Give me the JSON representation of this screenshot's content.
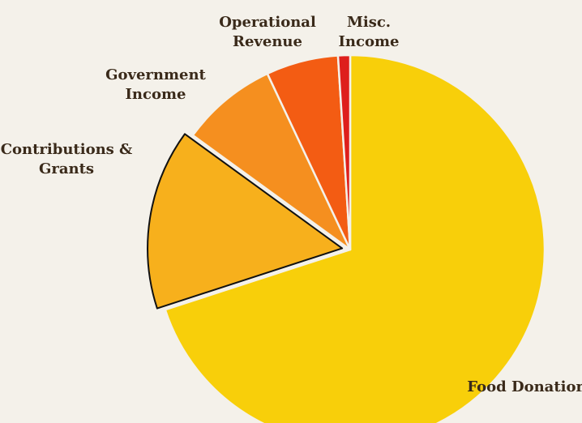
{
  "chart_data": {
    "type": "pie",
    "categories": [
      "Food Donations",
      "Contributions & Grants",
      "Government Income",
      "Operational Revenue",
      "Misc. Income"
    ],
    "values": [
      70,
      15,
      8,
      6,
      1
    ],
    "colors": [
      "#f8cf0a",
      "#f7b01c",
      "#f58f1f",
      "#f35c13",
      "#de1f1c"
    ],
    "highlight": 1
  }
}
